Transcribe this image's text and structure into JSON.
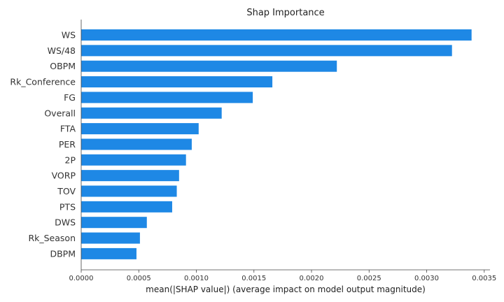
{
  "chart_data": {
    "type": "bar",
    "orientation": "horizontal",
    "title": "Shap Importance",
    "xlabel": "mean(|SHAP value|) (average impact on model output magnitude)",
    "ylabel": "",
    "xlim": [
      0,
      0.00355
    ],
    "x_ticks": [
      "0.0000",
      "0.0005",
      "0.0010",
      "0.0015",
      "0.0020",
      "0.0025",
      "0.0030",
      "0.0035"
    ],
    "categories": [
      "WS",
      "WS/48",
      "OBPM",
      "Rk_Conference",
      "FG",
      "Overall",
      "FTA",
      "PER",
      "2P",
      "VORP",
      "TOV",
      "PTS",
      "DWS",
      "Rk_Season",
      "DBPM"
    ],
    "values": [
      0.00339,
      0.00322,
      0.00222,
      0.00166,
      0.00149,
      0.00122,
      0.00102,
      0.00096,
      0.00091,
      0.00085,
      0.00083,
      0.00079,
      0.00057,
      0.00051,
      0.00048
    ],
    "bar_color": "#1e88e5",
    "grid": false,
    "legend": "none"
  }
}
